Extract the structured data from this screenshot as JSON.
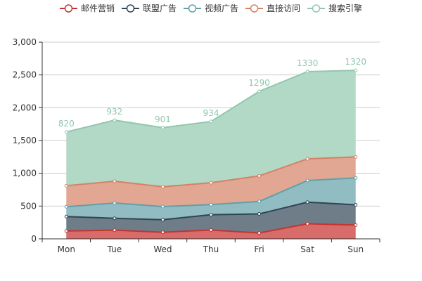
{
  "chart_data": {
    "type": "area",
    "stacked": true,
    "smooth": false,
    "categories": [
      "Mon",
      "Tue",
      "Wed",
      "Thu",
      "Fri",
      "Sat",
      "Sun"
    ],
    "series": [
      {
        "name": "邮件营销",
        "values": [
          120,
          132,
          101,
          134,
          90,
          230,
          210
        ],
        "color": "#c23531",
        "fill": "#d76c6a"
      },
      {
        "name": "联盟广告",
        "values": [
          220,
          182,
          191,
          234,
          290,
          330,
          310
        ],
        "color": "#2f4554",
        "fill": "#6e7d87"
      },
      {
        "name": "视频广告",
        "values": [
          150,
          232,
          201,
          154,
          190,
          330,
          410
        ],
        "color": "#61a0a8",
        "fill": "#90bcc2"
      },
      {
        "name": "直接访问",
        "values": [
          320,
          332,
          301,
          334,
          390,
          330,
          320
        ],
        "color": "#d48265",
        "fill": "#e1a793"
      },
      {
        "name": "搜索引擎",
        "values": [
          820,
          932,
          901,
          934,
          1290,
          1330,
          1320
        ],
        "color": "#91c7ae",
        "fill": "#b2d8c6"
      }
    ],
    "data_labels_series": "搜索引擎",
    "data_label_color": "#91c7ae",
    "yaxis": {
      "min": 0,
      "max": 3000,
      "interval": 500,
      "tick_labels": [
        "0",
        "500",
        "1,000",
        "1,500",
        "2,000",
        "2,500",
        "3,000"
      ]
    },
    "grid": true,
    "legend_position": "top-center",
    "title": "",
    "xlabel": "",
    "ylabel": ""
  }
}
